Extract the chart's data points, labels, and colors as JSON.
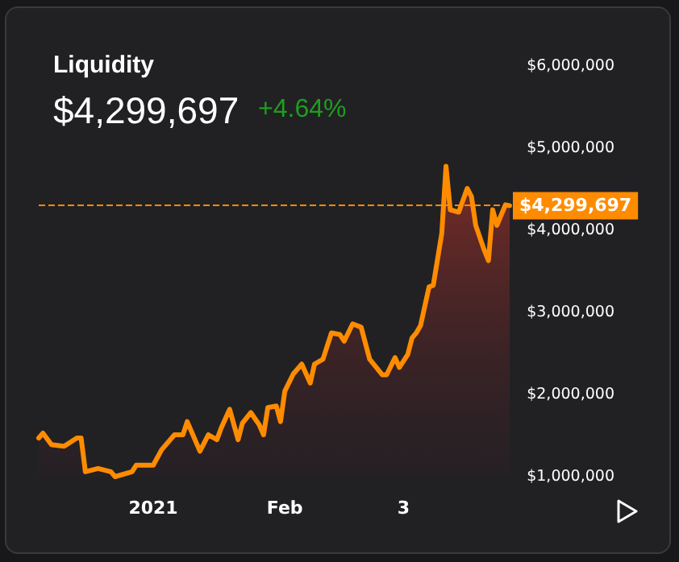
{
  "chart_data": {
    "type": "area",
    "title": "Liquidity",
    "subtitle": "$4,299,697",
    "annotations": [
      "+4.64%"
    ],
    "x": [
      "2020-12-05",
      "2020-12-06",
      "2020-12-08",
      "2020-12-11",
      "2020-12-14",
      "2020-12-15",
      "2020-12-16",
      "2020-12-19",
      "2020-12-22",
      "2020-12-23",
      "2020-12-27",
      "2020-12-28",
      "2021-01-01",
      "2021-01-03",
      "2021-01-06",
      "2021-01-08",
      "2021-01-09",
      "2021-01-12",
      "2021-01-14",
      "2021-01-16",
      "2021-01-17",
      "2021-01-19",
      "2021-01-21",
      "2021-01-22",
      "2021-01-24",
      "2021-01-26",
      "2021-01-27",
      "2021-01-28",
      "2021-01-30",
      "2021-01-31",
      "2021-02-01",
      "2021-02-03",
      "2021-02-05",
      "2021-02-07",
      "2021-02-08",
      "2021-02-10",
      "2021-02-12",
      "2021-02-14",
      "2021-02-15",
      "2021-02-17",
      "2021-02-19",
      "2021-02-21",
      "2021-02-24",
      "2021-02-25",
      "2021-02-27",
      "2021-02-28",
      "2021-03-02",
      "2021-03-03",
      "2021-03-04",
      "2021-03-05",
      "2021-03-07",
      "2021-03-08",
      "2021-03-10",
      "2021-03-11",
      "2021-03-12",
      "2021-03-14",
      "2021-03-16",
      "2021-03-17",
      "2021-03-18",
      "2021-03-20",
      "2021-03-21",
      "2021-03-22",
      "2021-03-23",
      "2021-03-25",
      "2021-03-26"
    ],
    "series": [
      {
        "color": "#ff8c00",
        "values": [
          1470000,
          1530000,
          1390000,
          1370000,
          1470000,
          1470000,
          1060000,
          1100000,
          1060000,
          1000000,
          1060000,
          1140000,
          1140000,
          1330000,
          1510000,
          1510000,
          1670000,
          1310000,
          1510000,
          1450000,
          1590000,
          1820000,
          1450000,
          1650000,
          1780000,
          1630000,
          1510000,
          1840000,
          1860000,
          1670000,
          2040000,
          2250000,
          2370000,
          2140000,
          2370000,
          2430000,
          2750000,
          2730000,
          2650000,
          2860000,
          2820000,
          2430000,
          2240000,
          2240000,
          2450000,
          2330000,
          2490000,
          2690000,
          2750000,
          2840000,
          3310000,
          3330000,
          3960000,
          4780000,
          4250000,
          4220000,
          4510000,
          4410000,
          4060000,
          3760000,
          3630000,
          4250000,
          4060000,
          4310000,
          4300000
        ]
      }
    ],
    "xlim": [
      "2020-12-05",
      "2021-03-26"
    ],
    "xticks": [
      {
        "value": "2021-01-01",
        "label": "2021"
      },
      {
        "value": "2021-02-01",
        "label": "Feb"
      },
      {
        "value": "2021-03-01",
        "label": "3"
      }
    ],
    "ylim": [
      1000000,
      6000000
    ],
    "yticks": [
      {
        "value": 1000000,
        "label": "$1,000,000"
      },
      {
        "value": 2000000,
        "label": "$2,000,000"
      },
      {
        "value": 3000000,
        "label": "$3,000,000"
      },
      {
        "value": 4000000,
        "label": "$4,000,000"
      },
      {
        "value": 5000000,
        "label": "$5,000,000"
      },
      {
        "value": 6000000,
        "label": "$6,000,000"
      }
    ],
    "ref_lines": [
      {
        "axis": "y",
        "value": 4299697,
        "label": "$4,299,697",
        "color": "#ff8c00",
        "line_style": "dashed"
      }
    ],
    "grid": false,
    "marker": "none",
    "line_style": "solid"
  }
}
